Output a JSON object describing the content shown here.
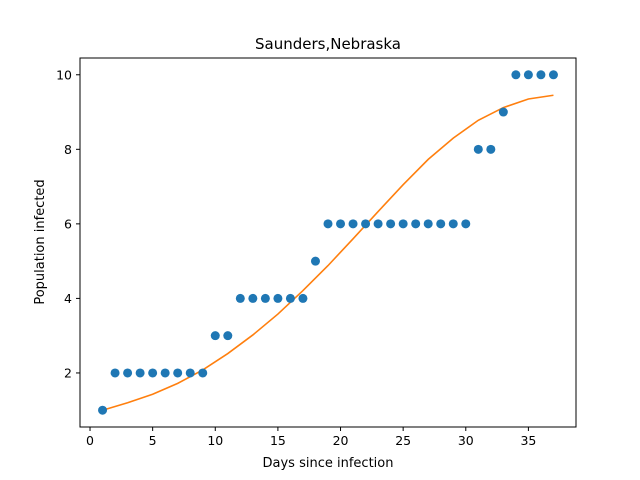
{
  "chart_data": {
    "type": "scatter",
    "title": "Saunders,Nebraska",
    "xlabel": "Days since infection",
    "ylabel": "Population infected",
    "xlim": [
      -0.8,
      38.8
    ],
    "ylim": [
      0.55,
      10.45
    ],
    "xticks": [
      0,
      5,
      10,
      15,
      20,
      25,
      30,
      35
    ],
    "yticks": [
      2,
      4,
      6,
      8,
      10
    ],
    "grid": false,
    "series": [
      {
        "kind": "scatter",
        "color": "#1f77b4",
        "x": [
          1,
          2,
          3,
          4,
          5,
          6,
          7,
          8,
          9,
          10,
          11,
          12,
          13,
          14,
          15,
          16,
          17,
          18,
          19,
          20,
          21,
          22,
          23,
          24,
          25,
          26,
          27,
          28,
          29,
          30,
          31,
          32,
          33,
          34,
          35,
          36,
          37
        ],
        "y": [
          1,
          2,
          2,
          2,
          2,
          2,
          2,
          2,
          2,
          3,
          3,
          4,
          4,
          4,
          4,
          4,
          4,
          5,
          6,
          6,
          6,
          6,
          6,
          6,
          6,
          6,
          6,
          6,
          6,
          6,
          8,
          8,
          9,
          10,
          10,
          10,
          10
        ]
      },
      {
        "kind": "line",
        "color": "#ff7f0e",
        "x": [
          1,
          3,
          5,
          7,
          9,
          11,
          13,
          15,
          17,
          19,
          21,
          23,
          25,
          27,
          29,
          31,
          33,
          35,
          37
        ],
        "y": [
          1.0,
          1.2,
          1.43,
          1.72,
          2.08,
          2.52,
          3.02,
          3.58,
          4.21,
          4.88,
          5.6,
          6.33,
          7.05,
          7.73,
          8.3,
          8.78,
          9.12,
          9.35,
          9.45
        ]
      }
    ]
  }
}
